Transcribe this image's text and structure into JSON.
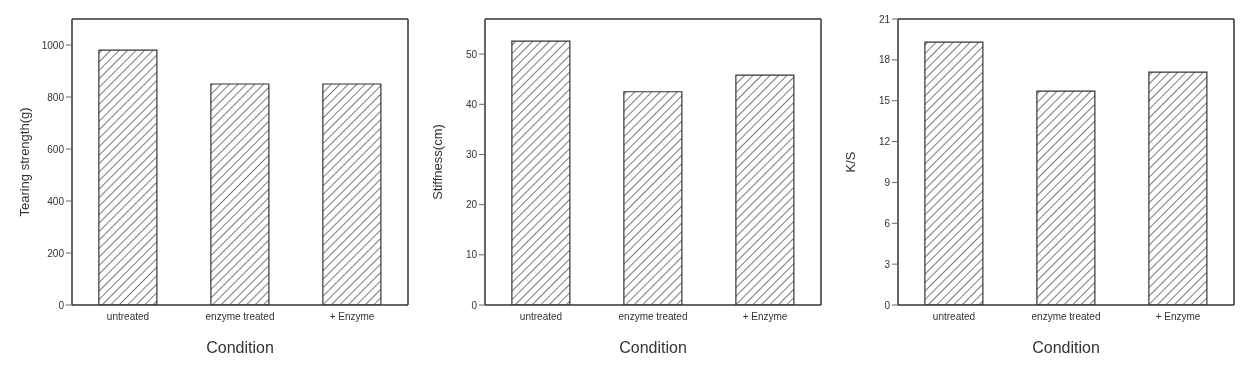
{
  "chart_data": [
    {
      "type": "bar",
      "xlabel": "Condition",
      "ylabel": "Tearing strength(g)",
      "categories": [
        "untreated",
        "enzyme treated",
        "+ Enzyme"
      ],
      "values": [
        980,
        850,
        850
      ],
      "color": "#333333",
      "ylim": [
        0,
        1100
      ],
      "yticks": [
        0,
        200,
        400,
        600,
        800,
        1000
      ],
      "grid": false,
      "legend": false
    },
    {
      "type": "bar",
      "xlabel": "Condition",
      "ylabel": "Stiffness(cm)",
      "categories": [
        "untreated",
        "enzyme treated",
        "+ Enzyme"
      ],
      "values": [
        52.6,
        42.5,
        45.8
      ],
      "color": "#333333",
      "ylim": [
        0,
        57
      ],
      "yticks": [
        0,
        10,
        20,
        30,
        40,
        50
      ],
      "grid": false,
      "legend": false
    },
    {
      "type": "bar",
      "xlabel": "Condition",
      "ylabel": "K/S",
      "categories": [
        "untreated",
        "enzyme treated",
        "+ Enzyme"
      ],
      "values": [
        19.3,
        15.7,
        17.1
      ],
      "color": "#333333",
      "ylim": [
        0,
        21
      ],
      "yticks": [
        0,
        3,
        6,
        9,
        12,
        15,
        18,
        21
      ],
      "grid": false,
      "legend": false
    }
  ]
}
